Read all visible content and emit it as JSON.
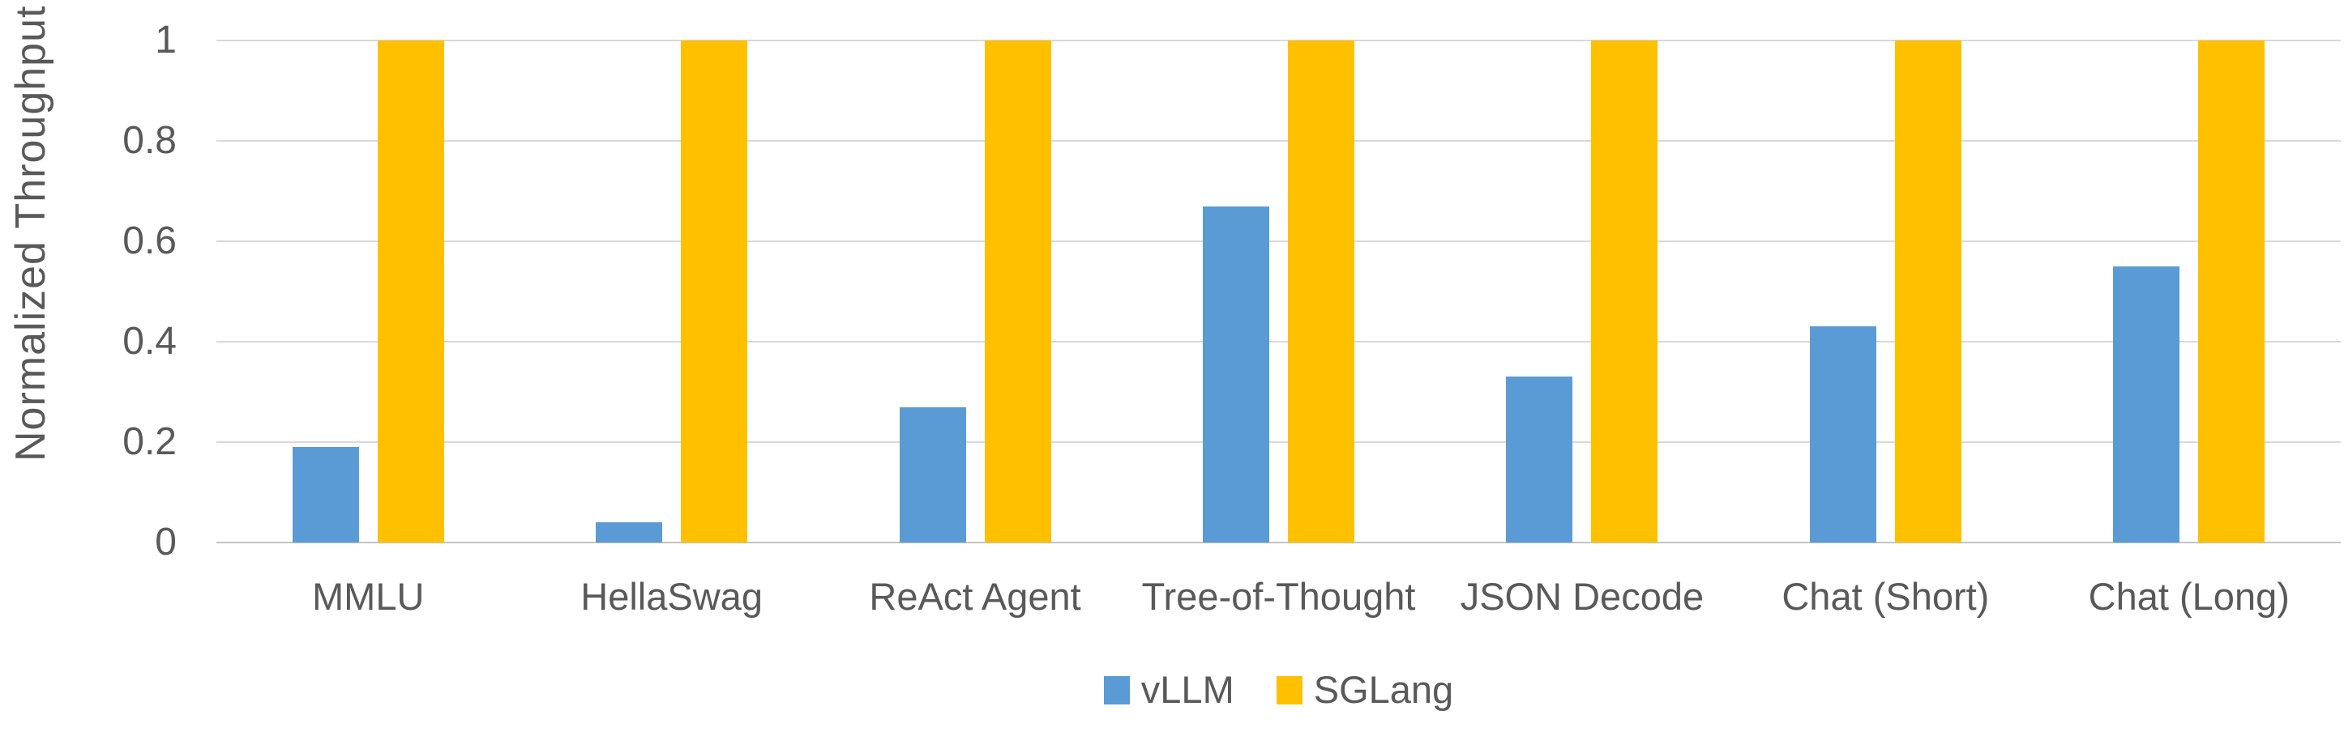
{
  "chart_data": {
    "type": "bar",
    "title": "",
    "xlabel": "",
    "ylabel": "Normalized Throughput",
    "categories": [
      "MMLU",
      "HellaSwag",
      "ReAct Agent",
      "Tree-of-Thought",
      "JSON Decode",
      "Chat (Short)",
      "Chat (Long)"
    ],
    "series": [
      {
        "name": "vLLM",
        "color": "#5B9BD5",
        "values": [
          0.19,
          0.04,
          0.27,
          0.67,
          0.33,
          0.43,
          0.55
        ]
      },
      {
        "name": "SGLang",
        "color": "#FFC000",
        "values": [
          1,
          1,
          1,
          1,
          1,
          1,
          1
        ]
      }
    ],
    "ylim": [
      0,
      1
    ],
    "yticks": [
      0,
      0.2,
      0.4,
      0.6,
      0.8,
      1
    ],
    "ytick_labels": [
      "0",
      "0.2",
      "0.4",
      "0.6",
      "0.8",
      "1"
    ],
    "grid": true,
    "legend_position": "bottom"
  },
  "colors": {
    "text": "#595959",
    "gridline": "#D9D9D9",
    "axis_line": "#C3C3C3",
    "background": "#FFFFFF"
  }
}
